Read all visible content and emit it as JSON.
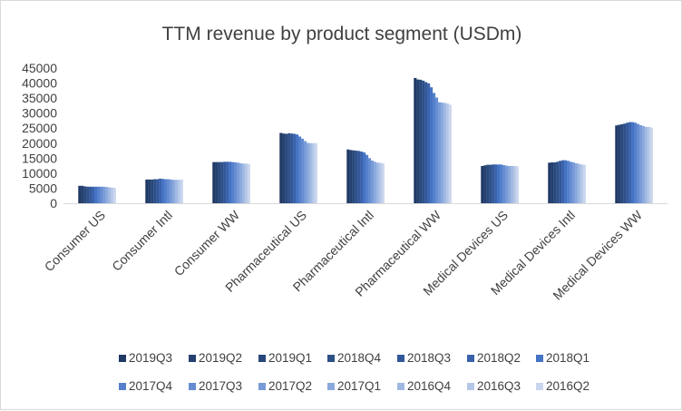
{
  "chart_data": {
    "type": "bar",
    "title": "TTM revenue by product segment (USDm)",
    "xlabel": "",
    "ylabel": "",
    "ylim": [
      0,
      45000
    ],
    "yticks": [
      0,
      5000,
      10000,
      15000,
      20000,
      25000,
      30000,
      35000,
      40000,
      45000
    ],
    "grid": false,
    "legend_position": "bottom",
    "categories": [
      "Consumer US",
      "Consumer Intl",
      "Consumer WW",
      "Pharmaceutical US",
      "Pharmaceutical Intl",
      "Pharmaceutical WW",
      "Medical Devices US",
      "Medical Devices Intl",
      "Medical Devices WW"
    ],
    "series": [
      {
        "name": "2019Q3",
        "color": "#203864",
        "values": [
          5800,
          7900,
          13700,
          23400,
          17900,
          41700,
          12400,
          13500,
          25900
        ]
      },
      {
        "name": "2019Q2",
        "color": "#24406f",
        "values": [
          5800,
          7900,
          13700,
          23200,
          17700,
          41200,
          12600,
          13600,
          26100
        ]
      },
      {
        "name": "2019Q1",
        "color": "#29487b",
        "values": [
          5600,
          7900,
          13700,
          23100,
          17600,
          41100,
          12800,
          13600,
          26300
        ]
      },
      {
        "name": "2018Q4",
        "color": "#2e5087",
        "values": [
          5500,
          8000,
          13700,
          23300,
          17500,
          40800,
          12800,
          13800,
          26500
        ]
      },
      {
        "name": "2018Q3",
        "color": "#33589a",
        "values": [
          5500,
          8000,
          13800,
          23200,
          17400,
          40300,
          12900,
          14100,
          26800
        ]
      },
      {
        "name": "2018Q2",
        "color": "#3a62ab",
        "values": [
          5500,
          8200,
          13800,
          23100,
          17200,
          39900,
          12900,
          14300,
          27000
        ]
      },
      {
        "name": "2018Q1",
        "color": "#4472c4",
        "values": [
          5500,
          8100,
          13800,
          22900,
          16900,
          38600,
          12900,
          14300,
          27000
        ]
      },
      {
        "name": "2017Q4",
        "color": "#5580cb",
        "values": [
          5500,
          8000,
          13700,
          22200,
          16100,
          36700,
          12900,
          14100,
          26800
        ]
      },
      {
        "name": "2017Q3",
        "color": "#668dd2",
        "values": [
          5500,
          8000,
          13600,
          21500,
          15000,
          35200,
          12700,
          13800,
          26400
        ]
      },
      {
        "name": "2017Q2",
        "color": "#789bd8",
        "values": [
          5500,
          7900,
          13500,
          20700,
          14200,
          33600,
          12500,
          13600,
          26000
        ]
      },
      {
        "name": "2017Q1",
        "color": "#8aa9dd",
        "values": [
          5400,
          7800,
          13300,
          20100,
          13800,
          33500,
          12400,
          13300,
          25700
        ]
      },
      {
        "name": "2016Q4",
        "color": "#9fb8e2",
        "values": [
          5300,
          7800,
          13200,
          20000,
          13500,
          33400,
          12400,
          13100,
          25400
        ]
      },
      {
        "name": "2016Q3",
        "color": "#b4c7e7",
        "values": [
          5200,
          7800,
          13200,
          20000,
          13400,
          33200,
          12400,
          12900,
          25400
        ]
      },
      {
        "name": "2016Q2",
        "color": "#c9d6ed",
        "values": [
          5100,
          7900,
          13100,
          20000,
          13300,
          32800,
          12300,
          12800,
          25200
        ]
      }
    ]
  }
}
